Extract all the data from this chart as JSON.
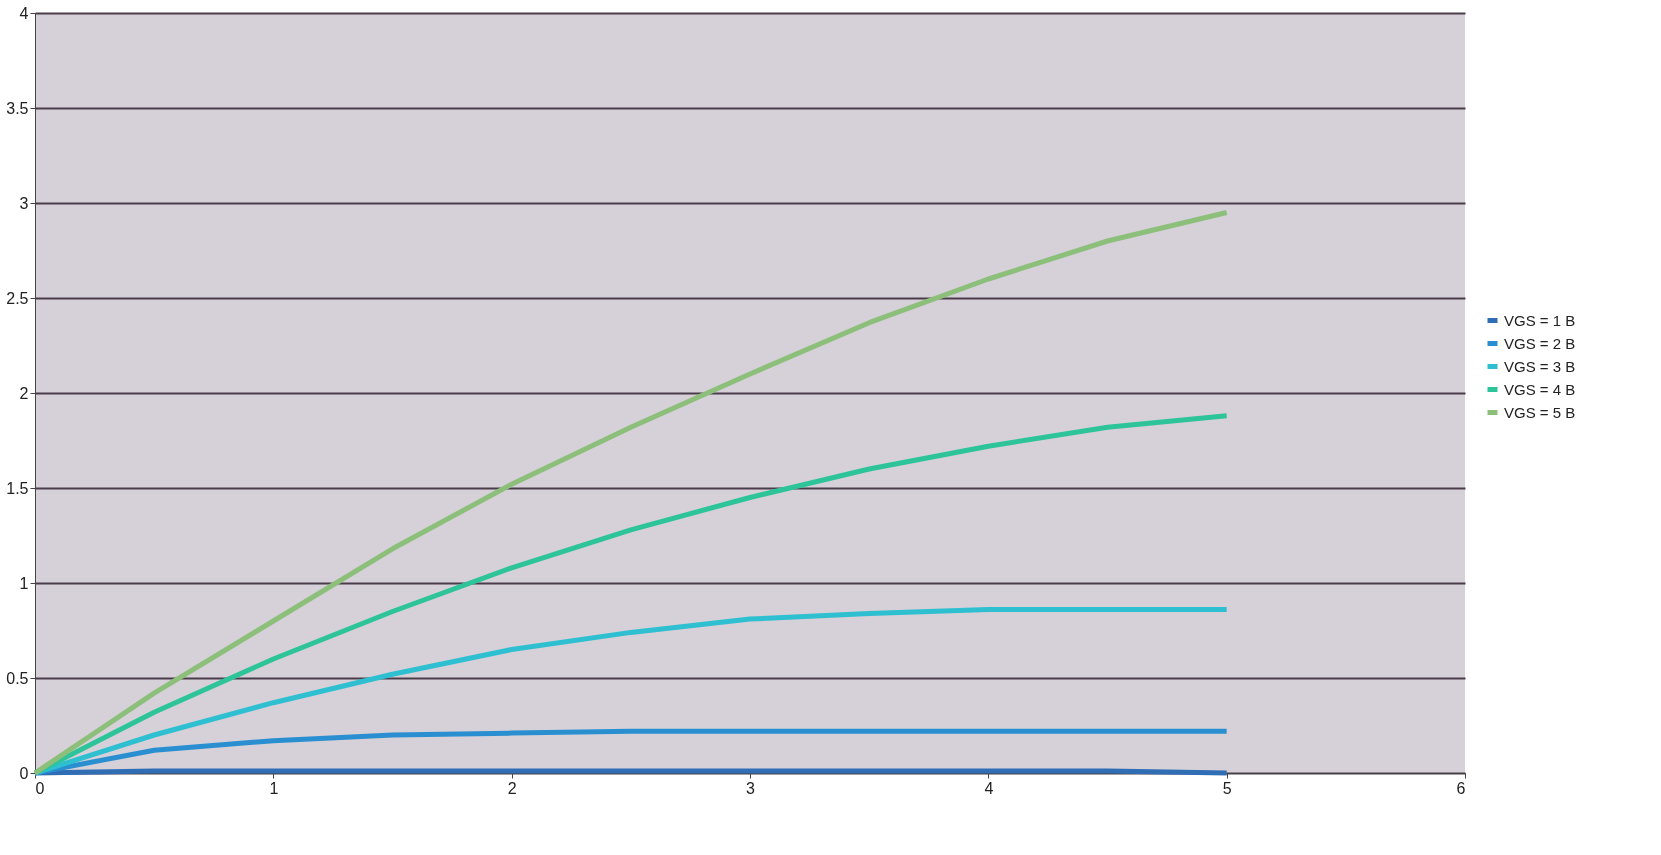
{
  "chart_data": {
    "type": "line",
    "x": [
      0,
      0.5,
      1,
      1.5,
      2,
      2.5,
      3,
      3.5,
      4,
      4.5,
      5
    ],
    "series": [
      {
        "name": "VGS = 1 B",
        "color": "#2f6db5",
        "values": [
          0,
          0.01,
          0.01,
          0.01,
          0.01,
          0.01,
          0.01,
          0.01,
          0.01,
          0.01,
          0
        ]
      },
      {
        "name": "VGS = 2 B",
        "color": "#2a8fd0",
        "values": [
          0,
          0.12,
          0.17,
          0.2,
          0.21,
          0.22,
          0.22,
          0.22,
          0.22,
          0.22,
          0.22
        ]
      },
      {
        "name": "VGS = 3 B",
        "color": "#2ebfd0",
        "values": [
          0,
          0.2,
          0.37,
          0.52,
          0.65,
          0.74,
          0.81,
          0.84,
          0.86,
          0.86,
          0.86
        ]
      },
      {
        "name": "VGS = 4 B",
        "color": "#2ec49a",
        "values": [
          0,
          0.32,
          0.6,
          0.85,
          1.08,
          1.28,
          1.45,
          1.6,
          1.72,
          1.82,
          1.88
        ]
      },
      {
        "name": "VGS = 5 B",
        "color": "#8cbf7a",
        "values": [
          0,
          0.42,
          0.8,
          1.18,
          1.52,
          1.82,
          2.1,
          2.37,
          2.6,
          2.8,
          2.95
        ]
      }
    ],
    "xlim": [
      0,
      6
    ],
    "xticks": [
      0,
      1,
      2,
      3,
      4,
      5,
      6
    ],
    "ylim": [
      0,
      4
    ],
    "yticks": [
      0,
      0.5,
      1,
      1.5,
      2,
      2.5,
      3,
      3.5,
      4
    ],
    "grid": "y",
    "legend": "right",
    "marker": "none",
    "line_style": "solid"
  }
}
